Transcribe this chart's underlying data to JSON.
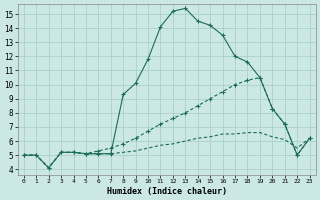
{
  "xlabel": "Humidex (Indice chaleur)",
  "bg_color": "#cce8e4",
  "grid_color": "#aacfcb",
  "line_color": "#1a6b5a",
  "xlim_min": -0.5,
  "xlim_max": 23.5,
  "ylim_min": 3.6,
  "ylim_max": 15.7,
  "yticks": [
    4,
    5,
    6,
    7,
    8,
    9,
    10,
    11,
    12,
    13,
    14,
    15
  ],
  "xticks": [
    0,
    1,
    2,
    3,
    4,
    5,
    6,
    7,
    8,
    9,
    10,
    11,
    12,
    13,
    14,
    15,
    16,
    17,
    18,
    19,
    20,
    21,
    22,
    23
  ],
  "curve1_x": [
    0,
    1,
    2,
    3,
    4,
    5,
    6,
    7,
    8,
    9,
    10,
    11,
    12,
    13,
    14,
    15,
    16,
    17,
    18,
    19,
    20,
    21,
    22,
    23
  ],
  "curve1_y": [
    5.0,
    5.0,
    4.1,
    5.2,
    5.2,
    5.1,
    5.1,
    5.1,
    9.3,
    10.1,
    11.8,
    14.1,
    15.2,
    15.4,
    14.5,
    14.2,
    13.5,
    12.0,
    11.6,
    10.5,
    8.3,
    7.2,
    5.0,
    6.2
  ],
  "curve2_x": [
    0,
    1,
    2,
    3,
    4,
    5,
    6,
    7,
    8,
    9,
    10,
    11,
    12,
    13,
    14,
    15,
    16,
    17,
    18,
    19,
    20,
    21,
    22,
    23
  ],
  "curve2_y": [
    5.0,
    5.0,
    4.1,
    5.2,
    5.2,
    5.1,
    5.3,
    5.5,
    5.8,
    6.2,
    6.7,
    7.2,
    7.6,
    8.0,
    8.5,
    9.0,
    9.5,
    10.0,
    10.3,
    10.5,
    8.3,
    7.2,
    5.0,
    6.2
  ],
  "curve3_x": [
    0,
    1,
    2,
    3,
    4,
    5,
    6,
    7,
    8,
    9,
    10,
    11,
    12,
    13,
    14,
    15,
    16,
    17,
    18,
    19,
    20,
    21,
    22,
    23
  ],
  "curve3_y": [
    5.0,
    5.0,
    4.1,
    5.2,
    5.2,
    5.1,
    5.1,
    5.1,
    5.2,
    5.3,
    5.5,
    5.7,
    5.8,
    6.0,
    6.2,
    6.3,
    6.5,
    6.5,
    6.6,
    6.6,
    6.3,
    6.1,
    5.5,
    6.2
  ]
}
